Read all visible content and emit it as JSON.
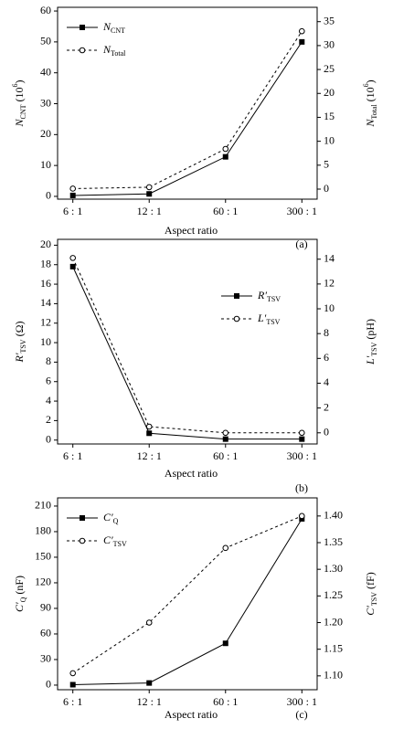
{
  "chart_data": [
    {
      "type": "line",
      "categories": [
        "6 : 1",
        "12 : 1",
        "60 : 1",
        "300 : 1"
      ],
      "xlabel": "Aspect ratio",
      "annotation": "(a)",
      "ylabel": [
        {
          "i": "N"
        },
        {
          "sub": "CNT"
        },
        " (10",
        {
          "sup": "6"
        },
        ")"
      ],
      "y2label": [
        {
          "i": "N"
        },
        {
          "sub": "Total"
        },
        " (10",
        {
          "sup": "6"
        },
        ")"
      ],
      "ylim": [
        -0.9,
        61.2
      ],
      "yticks": [
        0,
        10,
        20,
        30,
        40,
        50,
        60
      ],
      "y2lim": [
        -2.1,
        38
      ],
      "y2ticks": [
        0,
        5,
        10,
        15,
        20,
        25,
        30,
        35
      ],
      "legend": "upper left",
      "series": [
        {
          "name": [
            {
              "i": "N"
            },
            {
              "sub": "CNT"
            }
          ],
          "color": "#000000",
          "marker": "square",
          "linestyle": "solid",
          "values": [
            0.3,
            0.8,
            12.8,
            50
          ]
        },
        {
          "name": [
            {
              "i": "N"
            },
            {
              "sub": "Total"
            }
          ],
          "color": "#000000",
          "marker": "circle",
          "linestyle": "dotted",
          "axis": "y2",
          "values": [
            0.1,
            0.4,
            8.4,
            33
          ]
        }
      ]
    },
    {
      "type": "line",
      "categories": [
        "6 : 1",
        "12 : 1",
        "60 : 1",
        "300 : 1"
      ],
      "xlabel": "Aspect ratio",
      "annotation": "(b)",
      "ylabel": [
        {
          "i": "R′"
        },
        {
          "sub": "TSV"
        },
        " (Ω)"
      ],
      "y2label": [
        {
          "i": "L′"
        },
        {
          "sub": "TSV"
        },
        " (pH)"
      ],
      "ylim": [
        -0.4,
        20.6
      ],
      "yticks": [
        0,
        2,
        4,
        6,
        8,
        10,
        12,
        14,
        16,
        18,
        20
      ],
      "y2lim": [
        -0.9,
        15.6
      ],
      "y2ticks": [
        0,
        2,
        4,
        6,
        8,
        10,
        12,
        14
      ],
      "legend": "center right",
      "series": [
        {
          "name": [
            {
              "i": "R′"
            },
            {
              "sub": "TSV"
            }
          ],
          "color": "#000000",
          "marker": "square",
          "linestyle": "solid",
          "values": [
            17.8,
            0.7,
            0.1,
            0.1
          ]
        },
        {
          "name": [
            {
              "i": "L′"
            },
            {
              "sub": "TSV"
            }
          ],
          "color": "#000000",
          "marker": "circle",
          "linestyle": "dotted",
          "axis": "y2",
          "values": [
            14.1,
            0.5,
            0.0,
            0.0
          ]
        }
      ]
    },
    {
      "type": "line",
      "categories": [
        "6 : 1",
        "12 : 1",
        "60 : 1",
        "300 : 1"
      ],
      "xlabel": "Aspect ratio",
      "annotation": "(c)",
      "ylabel": [
        {
          "i": "C′"
        },
        {
          "sub": "Q"
        },
        " (nF)"
      ],
      "y2label": [
        {
          "i": "C′"
        },
        {
          "sub": "TSV"
        },
        " (fF)"
      ],
      "ylim": [
        -5.4,
        219.6
      ],
      "yticks": [
        0,
        30,
        60,
        90,
        120,
        150,
        180,
        210
      ],
      "y2lim": [
        1.074,
        1.434
      ],
      "y2ticks": [
        {
          "value": 1.1,
          "label": "1.10"
        },
        1.15,
        {
          "value": 1.2,
          "label": "1.20"
        },
        1.25,
        {
          "value": 1.3,
          "label": "1.30"
        },
        1.35,
        {
          "value": 1.4,
          "label": "1.40"
        }
      ],
      "legend": "upper left",
      "series": [
        {
          "name": [
            {
              "i": "C′"
            },
            {
              "sub": "Q"
            }
          ],
          "color": "#000000",
          "marker": "square",
          "linestyle": "solid",
          "values": [
            0.5,
            2.5,
            49,
            195
          ]
        },
        {
          "name": [
            {
              "i": "C′"
            },
            {
              "sub": "TSV"
            }
          ],
          "color": "#000000",
          "marker": "circle",
          "linestyle": "dotted",
          "axis": "y2",
          "values": [
            1.105,
            1.2,
            1.34,
            1.4
          ]
        }
      ]
    }
  ]
}
